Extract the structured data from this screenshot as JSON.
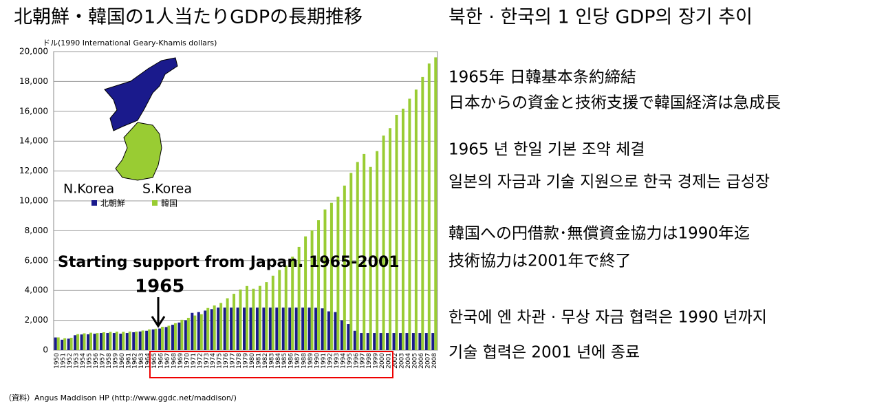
{
  "chart_data": {
    "type": "bar",
    "title": "北朝鮮・韓国の1人当たりGDPの長期推移",
    "subtitle": "북한 · 한국의 1 인당 GDP의 장기 추이",
    "y_label": "ドル(1990 International Geary-Khamis dollars)",
    "source": "（資料）Angus Maddison HP (http://www.ggdc.net/maddison/)",
    "map_labels": [
      "N.Korea",
      "S.Korea"
    ],
    "annotations": [
      "Starting support from Japan. 1965-2001",
      "1965"
    ],
    "notes": [
      "1965年 日韓基本条約締結",
      "日本からの資金と技術支援で韓国経済は急成長",
      "1965 년 한일 기본 조약 체결",
      "일본의 자금과 기술 지원으로 한국 경제는 급성장",
      "韓国への円借款･無償資金協力は1990年迄",
      "技術協力は2001年で終了",
      "한국에 엔 차관 · 무상 자금 협력은 1990 년까지",
      "기술 협력은 2001 년에 종료"
    ],
    "categories": [
      "1950",
      "1951",
      "1952",
      "1953",
      "1954",
      "1955",
      "1956",
      "1957",
      "1958",
      "1959",
      "1960",
      "1961",
      "1962",
      "1963",
      "1964",
      "1965",
      "1966",
      "1967",
      "1968",
      "1969",
      "1970",
      "1971",
      "1972",
      "1973",
      "1974",
      "1975",
      "1976",
      "1977",
      "1978",
      "1979",
      "1980",
      "1981",
      "1982",
      "1983",
      "1984",
      "1985",
      "1986",
      "1987",
      "1988",
      "1989",
      "1990",
      "1991",
      "1992",
      "1993",
      "1994",
      "1995",
      "1996",
      "1997",
      "1998",
      "1999",
      "2000",
      "2001",
      "2002",
      "2003",
      "2004",
      "2005",
      "2006",
      "2007",
      "2008"
    ],
    "series": [
      {
        "name": "北朝鮮",
        "color": "#1a1a8c",
        "values": [
          850,
          700,
          770,
          1000,
          1050,
          1060,
          1100,
          1150,
          1150,
          1150,
          1105,
          1150,
          1200,
          1250,
          1300,
          1390,
          1450,
          1550,
          1700,
          1850,
          2000,
          2500,
          2550,
          2650,
          2750,
          2850,
          2850,
          2850,
          2850,
          2850,
          2850,
          2850,
          2850,
          2850,
          2850,
          2850,
          2850,
          2850,
          2850,
          2850,
          2840,
          2800,
          2600,
          2550,
          2000,
          1750,
          1300,
          1150,
          1150,
          1150,
          1150,
          1150,
          1150,
          1150,
          1150,
          1150,
          1150,
          1150,
          1150
        ]
      },
      {
        "name": "韓国",
        "color": "#99cc33",
        "values": [
          854,
          800,
          830,
          1072,
          1126,
          1169,
          1145,
          1197,
          1224,
          1236,
          1226,
          1247,
          1245,
          1316,
          1390,
          1436,
          1565,
          1637,
          1807,
          2034,
          2167,
          2322,
          2404,
          2824,
          2993,
          3162,
          3476,
          3775,
          4064,
          4294,
          4114,
          4302,
          4557,
          4988,
          5375,
          5670,
          6263,
          6916,
          7621,
          8027,
          8704,
          9423,
          9872,
          10283,
          11024,
          11873,
          12603,
          13139,
          12271,
          13335,
          14375,
          14874,
          15762,
          16177,
          16844,
          17455,
          18300,
          19200,
          19614
        ]
      }
    ],
    "ylim": [
      0,
      20000
    ],
    "yticks": [
      0,
      {
        "value": 2000,
        "label": "2,000"
      },
      {
        "value": 4000,
        "label": "4,000"
      },
      {
        "value": 6000,
        "label": "6,000"
      },
      {
        "value": 8000,
        "label": "8,000"
      },
      {
        "value": 10000,
        "label": "10,000"
      },
      {
        "value": 12000,
        "label": "12,000"
      },
      {
        "value": 14000,
        "label": "14,000"
      },
      {
        "value": 16000,
        "label": "16,000"
      },
      {
        "value": 18000,
        "label": "18,000"
      },
      {
        "value": 20000,
        "label": "20,000"
      }
    ],
    "grid": true
  }
}
